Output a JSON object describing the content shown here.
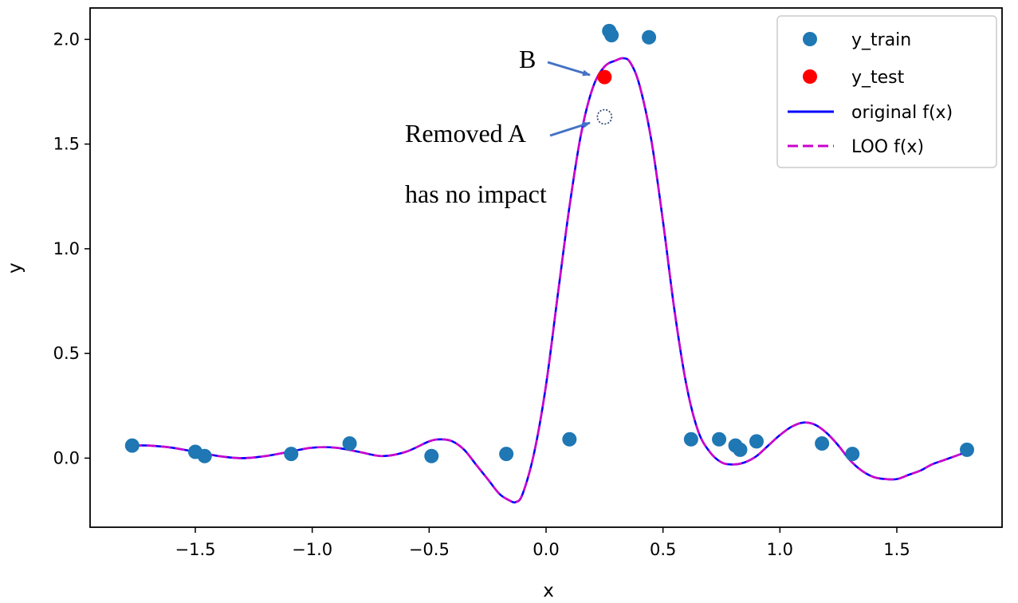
{
  "chart_data": {
    "type": "scatter",
    "title": "",
    "xlabel": "x",
    "ylabel": "y",
    "xlim": [
      -1.95,
      1.95
    ],
    "ylim": [
      -0.33,
      2.15
    ],
    "xticks": [
      -1.5,
      -1.0,
      -0.5,
      0.0,
      0.5,
      1.0,
      1.5
    ],
    "xtick_labels": [
      "−1.5",
      "−1.0",
      "−0.5",
      "0.0",
      "0.5",
      "1.0",
      "1.5"
    ],
    "yticks": [
      0.0,
      0.5,
      1.0,
      1.5,
      2.0
    ],
    "ytick_labels": [
      "0.0",
      "0.5",
      "1.0",
      "1.5",
      "2.0"
    ],
    "grid": false,
    "legend_position": "top-right",
    "colors": {
      "train": "#1f77b4",
      "test": "#ff0000",
      "original": "#0000ff",
      "loo": "#cc00cc",
      "arrow": "#4472c4",
      "removed": "#1f3b70"
    },
    "series": [
      {
        "name": "y_train",
        "kind": "scatter",
        "x": [
          -1.77,
          -1.5,
          -1.46,
          -1.09,
          -0.84,
          -0.49,
          -0.17,
          0.1,
          0.27,
          0.28,
          0.44,
          0.62,
          0.74,
          0.81,
          0.83,
          0.9,
          1.18,
          1.31,
          1.8
        ],
        "y": [
          0.06,
          0.03,
          0.01,
          0.02,
          0.07,
          0.01,
          0.02,
          0.09,
          2.04,
          2.02,
          2.01,
          0.09,
          0.09,
          0.06,
          0.04,
          0.08,
          0.07,
          0.02,
          0.04
        ]
      },
      {
        "name": "y_test",
        "kind": "scatter",
        "x": [
          0.25
        ],
        "y": [
          1.82
        ]
      },
      {
        "name": "original f(x)",
        "kind": "line",
        "style": "solid",
        "x": [
          -1.77,
          -1.7,
          -1.6,
          -1.5,
          -1.4,
          -1.3,
          -1.2,
          -1.1,
          -1.0,
          -0.9,
          -0.8,
          -0.7,
          -0.6,
          -0.5,
          -0.45,
          -0.4,
          -0.35,
          -0.3,
          -0.25,
          -0.2,
          -0.16,
          -0.13,
          -0.1,
          -0.05,
          0.0,
          0.05,
          0.1,
          0.15,
          0.2,
          0.25,
          0.3,
          0.33,
          0.36,
          0.4,
          0.45,
          0.5,
          0.55,
          0.6,
          0.65,
          0.7,
          0.75,
          0.8,
          0.85,
          0.9,
          0.95,
          1.0,
          1.05,
          1.1,
          1.15,
          1.2,
          1.25,
          1.3,
          1.35,
          1.4,
          1.45,
          1.5,
          1.55,
          1.6,
          1.65,
          1.7,
          1.75,
          1.8
        ],
        "y": [
          0.06,
          0.06,
          0.05,
          0.03,
          0.01,
          0.0,
          0.01,
          0.03,
          0.05,
          0.05,
          0.03,
          0.01,
          0.03,
          0.08,
          0.09,
          0.08,
          0.04,
          -0.03,
          -0.1,
          -0.17,
          -0.2,
          -0.21,
          -0.17,
          0.03,
          0.35,
          0.78,
          1.2,
          1.55,
          1.77,
          1.87,
          1.9,
          1.91,
          1.89,
          1.78,
          1.52,
          1.13,
          0.7,
          0.35,
          0.13,
          0.03,
          -0.02,
          -0.03,
          -0.02,
          0.01,
          0.06,
          0.11,
          0.15,
          0.17,
          0.16,
          0.12,
          0.06,
          -0.01,
          -0.06,
          -0.09,
          -0.1,
          -0.1,
          -0.08,
          -0.06,
          -0.03,
          -0.01,
          0.01,
          0.03
        ]
      },
      {
        "name": "LOO f(x)",
        "kind": "line",
        "style": "dashed",
        "same_as": "original f(x)"
      }
    ],
    "removed_point": {
      "x": 0.25,
      "y": 1.63
    },
    "annotations": [
      {
        "id": "b",
        "text": "B",
        "points_to": [
          0.25,
          1.82
        ]
      },
      {
        "id": "removed",
        "text": "Removed A",
        "points_to": [
          0.25,
          1.63
        ]
      },
      {
        "id": "impact",
        "text": "has no impact"
      }
    ]
  }
}
